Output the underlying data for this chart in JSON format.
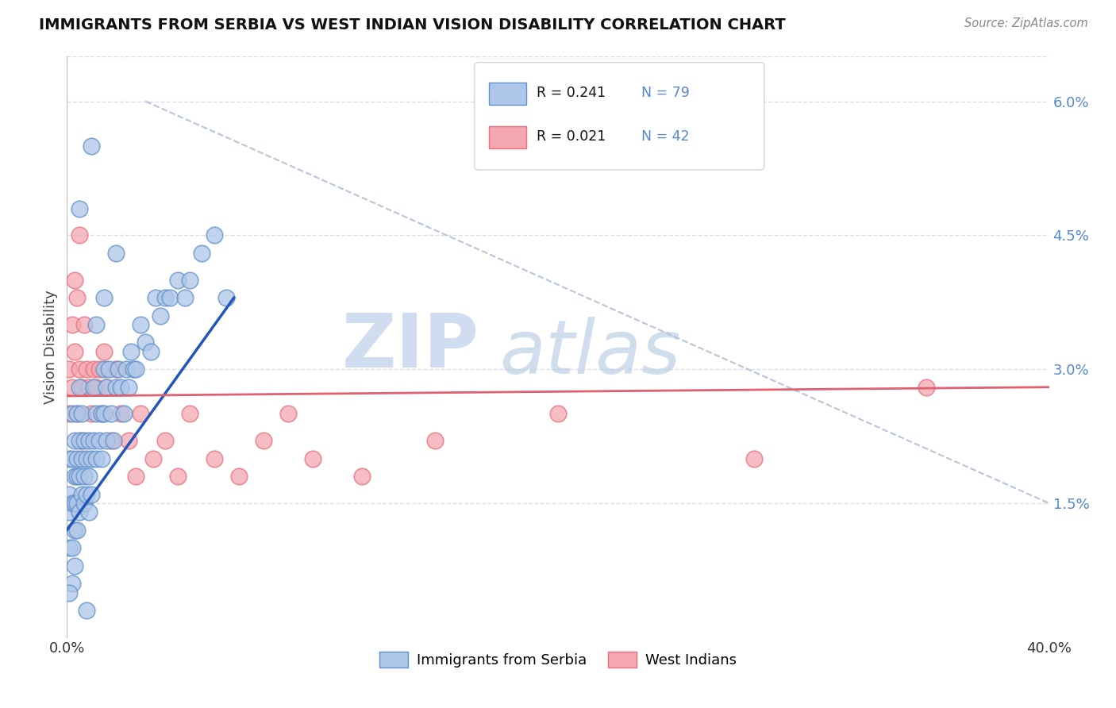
{
  "title": "IMMIGRANTS FROM SERBIA VS WEST INDIAN VISION DISABILITY CORRELATION CHART",
  "source": "Source: ZipAtlas.com",
  "ylabel": "Vision Disability",
  "ytick_labels": [
    "1.5%",
    "3.0%",
    "4.5%",
    "6.0%"
  ],
  "ytick_values": [
    0.015,
    0.03,
    0.045,
    0.06
  ],
  "xlim": [
    0.0,
    0.4
  ],
  "ylim": [
    0.0,
    0.065
  ],
  "watermark_zip": "ZIP",
  "watermark_atlas": "atlas",
  "legend_serbia_color": "#aec6e8",
  "legend_westindian_color": "#f4a7b0",
  "legend_serbia_edge": "#6090c8",
  "legend_westindian_edge": "#e8707a",
  "legend_R1": "R = 0.241",
  "legend_N1": "N = 79",
  "legend_R2": "R = 0.021",
  "legend_N2": "N = 42",
  "legend_label1": "Immigrants from Serbia",
  "legend_label2": "West Indians",
  "blue_line_x": [
    0.0,
    0.068
  ],
  "blue_line_y": [
    0.012,
    0.038
  ],
  "pink_line_x": [
    0.0,
    0.4
  ],
  "pink_line_y": [
    0.027,
    0.028
  ],
  "diag_line_x": [
    0.032,
    0.4
  ],
  "diag_line_y": [
    0.06,
    0.015
  ],
  "blue_line_color": "#2255bb",
  "pink_line_color": "#e06070",
  "diag_line_color": "#b8c4d8",
  "background_color": "#ffffff",
  "grid_color": "#d8dde8",
  "title_color": "#111111",
  "source_color": "#888888",
  "axis_label_color": "#444444",
  "right_tick_color": "#5588cc",
  "serbia_scatter_x": [
    0.001,
    0.001,
    0.001,
    0.001,
    0.002,
    0.002,
    0.002,
    0.002,
    0.003,
    0.003,
    0.003,
    0.003,
    0.004,
    0.004,
    0.004,
    0.004,
    0.004,
    0.005,
    0.005,
    0.005,
    0.005,
    0.006,
    0.006,
    0.006,
    0.007,
    0.007,
    0.007,
    0.008,
    0.008,
    0.009,
    0.009,
    0.009,
    0.01,
    0.01,
    0.011,
    0.011,
    0.012,
    0.012,
    0.013,
    0.014,
    0.014,
    0.015,
    0.015,
    0.016,
    0.016,
    0.017,
    0.018,
    0.019,
    0.02,
    0.021,
    0.022,
    0.023,
    0.024,
    0.025,
    0.026,
    0.027,
    0.028,
    0.03,
    0.032,
    0.034,
    0.036,
    0.038,
    0.04,
    0.042,
    0.045,
    0.048,
    0.05,
    0.055,
    0.06,
    0.065,
    0.012,
    0.015,
    0.02,
    0.01,
    0.005,
    0.008,
    0.003,
    0.002,
    0.001
  ],
  "serbia_scatter_y": [
    0.02,
    0.016,
    0.014,
    0.01,
    0.025,
    0.02,
    0.015,
    0.01,
    0.022,
    0.018,
    0.015,
    0.012,
    0.025,
    0.02,
    0.018,
    0.015,
    0.012,
    0.028,
    0.022,
    0.018,
    0.014,
    0.025,
    0.02,
    0.016,
    0.022,
    0.018,
    0.015,
    0.02,
    0.016,
    0.022,
    0.018,
    0.014,
    0.02,
    0.016,
    0.028,
    0.022,
    0.025,
    0.02,
    0.022,
    0.025,
    0.02,
    0.03,
    0.025,
    0.028,
    0.022,
    0.03,
    0.025,
    0.022,
    0.028,
    0.03,
    0.028,
    0.025,
    0.03,
    0.028,
    0.032,
    0.03,
    0.03,
    0.035,
    0.033,
    0.032,
    0.038,
    0.036,
    0.038,
    0.038,
    0.04,
    0.038,
    0.04,
    0.043,
    0.045,
    0.038,
    0.035,
    0.038,
    0.043,
    0.055,
    0.048,
    0.003,
    0.008,
    0.006,
    0.005
  ],
  "westindian_scatter_x": [
    0.001,
    0.001,
    0.002,
    0.002,
    0.003,
    0.003,
    0.004,
    0.004,
    0.005,
    0.005,
    0.006,
    0.006,
    0.007,
    0.008,
    0.009,
    0.01,
    0.011,
    0.012,
    0.013,
    0.014,
    0.015,
    0.016,
    0.018,
    0.02,
    0.022,
    0.025,
    0.028,
    0.03,
    0.035,
    0.04,
    0.045,
    0.05,
    0.06,
    0.07,
    0.08,
    0.09,
    0.1,
    0.12,
    0.15,
    0.2,
    0.28,
    0.35
  ],
  "westindian_scatter_y": [
    0.03,
    0.025,
    0.035,
    0.028,
    0.04,
    0.032,
    0.038,
    0.025,
    0.045,
    0.03,
    0.028,
    0.022,
    0.035,
    0.03,
    0.028,
    0.025,
    0.03,
    0.028,
    0.03,
    0.025,
    0.032,
    0.028,
    0.022,
    0.03,
    0.025,
    0.022,
    0.018,
    0.025,
    0.02,
    0.022,
    0.018,
    0.025,
    0.02,
    0.018,
    0.022,
    0.025,
    0.02,
    0.018,
    0.022,
    0.025,
    0.02,
    0.028
  ]
}
